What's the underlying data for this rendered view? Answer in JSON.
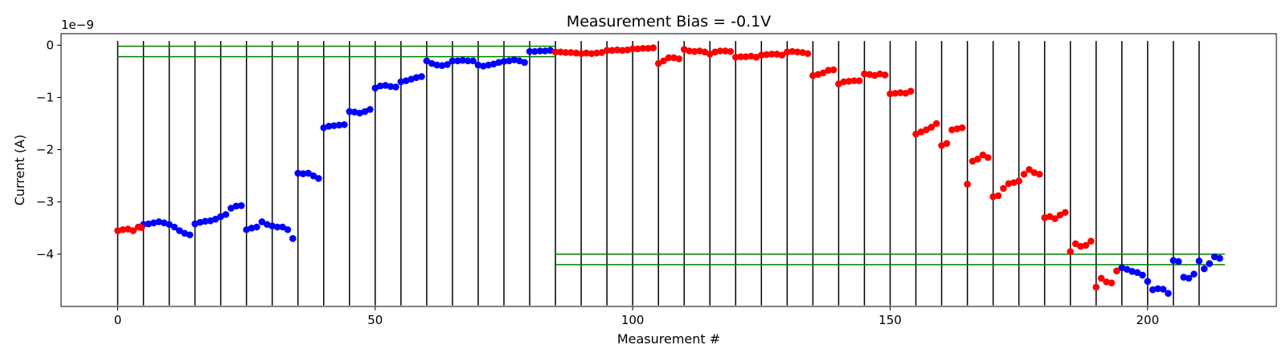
{
  "chart_data": {
    "type": "scatter",
    "title": "Measurement Bias = -0.1V",
    "xlabel": "Measurement #",
    "ylabel": "Current (A)",
    "y_exponent_label": "1e−9",
    "xlim": [
      -11,
      225
    ],
    "ylim": [
      -5.0,
      0.22
    ],
    "x_ticks": [
      0,
      50,
      100,
      150,
      200
    ],
    "x_tick_labels": [
      "0",
      "50",
      "100",
      "150",
      "200"
    ],
    "y_ticks": [
      0,
      -1,
      -2,
      -3,
      -4
    ],
    "y_tick_labels": [
      "0",
      "−1",
      "−2",
      "−3",
      "−4"
    ],
    "vertical_lines_x": [
      0,
      5,
      10,
      15,
      20,
      25,
      30,
      35,
      40,
      45,
      50,
      55,
      60,
      65,
      70,
      75,
      80,
      85,
      90,
      95,
      100,
      105,
      110,
      115,
      120,
      125,
      130,
      135,
      140,
      145,
      150,
      155,
      160,
      165,
      170,
      175,
      180,
      185,
      190,
      195,
      200,
      205,
      210
    ],
    "vertical_line_color": "#000000",
    "reference_lines": [
      {
        "y": -0.02,
        "x_start": 0,
        "x_end": 85,
        "color": "#008000"
      },
      {
        "y": -0.22,
        "x_start": 0,
        "x_end": 85,
        "color": "#008000"
      },
      {
        "y": -4.0,
        "x_start": 85,
        "x_end": 215,
        "color": "#008000"
      },
      {
        "y": -4.2,
        "x_start": 85,
        "x_end": 215,
        "color": "#008000"
      }
    ],
    "series": [
      {
        "color": "#0000ff",
        "points": [
          [
            5,
            -3.43
          ],
          [
            6,
            -3.42
          ],
          [
            7,
            -3.4
          ],
          [
            8,
            -3.38
          ],
          [
            9,
            -3.4
          ],
          [
            10,
            -3.43
          ],
          [
            11,
            -3.48
          ],
          [
            12,
            -3.55
          ],
          [
            13,
            -3.6
          ],
          [
            14,
            -3.63
          ],
          [
            15,
            -3.42
          ],
          [
            16,
            -3.39
          ],
          [
            17,
            -3.37
          ],
          [
            18,
            -3.36
          ],
          [
            19,
            -3.33
          ],
          [
            20,
            -3.28
          ],
          [
            21,
            -3.24
          ],
          [
            22,
            -3.12
          ],
          [
            23,
            -3.08
          ],
          [
            24,
            -3.07
          ],
          [
            25,
            -3.53
          ],
          [
            26,
            -3.5
          ],
          [
            27,
            -3.48
          ],
          [
            28,
            -3.38
          ],
          [
            29,
            -3.43
          ],
          [
            30,
            -3.46
          ],
          [
            31,
            -3.48
          ],
          [
            32,
            -3.48
          ],
          [
            33,
            -3.53
          ],
          [
            34,
            -3.7
          ],
          [
            35,
            -2.45
          ],
          [
            36,
            -2.46
          ],
          [
            37,
            -2.45
          ],
          [
            38,
            -2.5
          ],
          [
            39,
            -2.55
          ],
          [
            40,
            -1.58
          ],
          [
            41,
            -1.55
          ],
          [
            42,
            -1.54
          ],
          [
            43,
            -1.53
          ],
          [
            44,
            -1.52
          ],
          [
            45,
            -1.27
          ],
          [
            46,
            -1.28
          ],
          [
            47,
            -1.3
          ],
          [
            48,
            -1.27
          ],
          [
            49,
            -1.23
          ],
          [
            50,
            -0.82
          ],
          [
            51,
            -0.78
          ],
          [
            52,
            -0.77
          ],
          [
            53,
            -0.79
          ],
          [
            54,
            -0.8
          ],
          [
            55,
            -0.7
          ],
          [
            56,
            -0.68
          ],
          [
            57,
            -0.65
          ],
          [
            58,
            -0.62
          ],
          [
            59,
            -0.6
          ],
          [
            60,
            -0.3
          ],
          [
            61,
            -0.35
          ],
          [
            62,
            -0.38
          ],
          [
            63,
            -0.39
          ],
          [
            64,
            -0.37
          ],
          [
            65,
            -0.3
          ],
          [
            66,
            -0.3
          ],
          [
            67,
            -0.29
          ],
          [
            68,
            -0.3
          ],
          [
            69,
            -0.3
          ],
          [
            70,
            -0.38
          ],
          [
            71,
            -0.4
          ],
          [
            72,
            -0.38
          ],
          [
            73,
            -0.36
          ],
          [
            74,
            -0.33
          ],
          [
            75,
            -0.31
          ],
          [
            76,
            -0.3
          ],
          [
            77,
            -0.28
          ],
          [
            78,
            -0.3
          ],
          [
            79,
            -0.33
          ],
          [
            80,
            -0.12
          ],
          [
            81,
            -0.12
          ],
          [
            82,
            -0.11
          ],
          [
            83,
            -0.11
          ],
          [
            84,
            -0.1
          ],
          [
            195,
            -4.26
          ],
          [
            196,
            -4.29
          ],
          [
            197,
            -4.33
          ],
          [
            198,
            -4.35
          ],
          [
            199,
            -4.4
          ],
          [
            200,
            -4.52
          ],
          [
            201,
            -4.68
          ],
          [
            202,
            -4.66
          ],
          [
            203,
            -4.67
          ],
          [
            204,
            -4.75
          ],
          [
            205,
            -4.12
          ],
          [
            206,
            -4.14
          ],
          [
            207,
            -4.44
          ],
          [
            208,
            -4.46
          ],
          [
            209,
            -4.38
          ],
          [
            210,
            -4.13
          ],
          [
            211,
            -4.28
          ],
          [
            212,
            -4.18
          ],
          [
            213,
            -4.05
          ],
          [
            214,
            -4.08
          ]
        ]
      },
      {
        "color": "#ff0000",
        "points": [
          [
            0,
            -3.55
          ],
          [
            1,
            -3.53
          ],
          [
            2,
            -3.52
          ],
          [
            3,
            -3.55
          ],
          [
            4,
            -3.48
          ],
          [
            4.6,
            -3.49
          ],
          [
            85,
            -0.13
          ],
          [
            86,
            -0.13
          ],
          [
            87,
            -0.14
          ],
          [
            88,
            -0.14
          ],
          [
            89,
            -0.15
          ],
          [
            90,
            -0.16
          ],
          [
            91,
            -0.15
          ],
          [
            92,
            -0.16
          ],
          [
            93,
            -0.15
          ],
          [
            94,
            -0.14
          ],
          [
            95,
            -0.1
          ],
          [
            96,
            -0.1
          ],
          [
            97,
            -0.09
          ],
          [
            98,
            -0.1
          ],
          [
            99,
            -0.09
          ],
          [
            100,
            -0.07
          ],
          [
            101,
            -0.07
          ],
          [
            102,
            -0.06
          ],
          [
            103,
            -0.06
          ],
          [
            104,
            -0.05
          ],
          [
            105,
            -0.35
          ],
          [
            106,
            -0.3
          ],
          [
            107,
            -0.24
          ],
          [
            108,
            -0.24
          ],
          [
            109,
            -0.26
          ],
          [
            110,
            -0.08
          ],
          [
            111,
            -0.11
          ],
          [
            112,
            -0.12
          ],
          [
            113,
            -0.11
          ],
          [
            114,
            -0.13
          ],
          [
            115,
            -0.17
          ],
          [
            116,
            -0.13
          ],
          [
            117,
            -0.11
          ],
          [
            118,
            -0.11
          ],
          [
            119,
            -0.12
          ],
          [
            120,
            -0.23
          ],
          [
            121,
            -0.22
          ],
          [
            122,
            -0.22
          ],
          [
            123,
            -0.21
          ],
          [
            124,
            -0.23
          ],
          [
            125,
            -0.19
          ],
          [
            126,
            -0.18
          ],
          [
            127,
            -0.17
          ],
          [
            128,
            -0.17
          ],
          [
            129,
            -0.19
          ],
          [
            130,
            -0.13
          ],
          [
            131,
            -0.12
          ],
          [
            132,
            -0.13
          ],
          [
            133,
            -0.14
          ],
          [
            134,
            -0.16
          ],
          [
            135,
            -0.58
          ],
          [
            136,
            -0.56
          ],
          [
            137,
            -0.53
          ],
          [
            138,
            -0.48
          ],
          [
            139,
            -0.47
          ],
          [
            140,
            -0.74
          ],
          [
            141,
            -0.7
          ],
          [
            142,
            -0.69
          ],
          [
            143,
            -0.68
          ],
          [
            144,
            -0.68
          ],
          [
            145,
            -0.55
          ],
          [
            146,
            -0.56
          ],
          [
            147,
            -0.58
          ],
          [
            148,
            -0.55
          ],
          [
            149,
            -0.57
          ],
          [
            150,
            -0.93
          ],
          [
            151,
            -0.92
          ],
          [
            152,
            -0.91
          ],
          [
            153,
            -0.92
          ],
          [
            154,
            -0.88
          ],
          [
            155,
            -1.7
          ],
          [
            156,
            -1.66
          ],
          [
            157,
            -1.62
          ],
          [
            158,
            -1.57
          ],
          [
            159,
            -1.5
          ],
          [
            160,
            -1.92
          ],
          [
            161,
            -1.88
          ],
          [
            162,
            -1.62
          ],
          [
            163,
            -1.6
          ],
          [
            164,
            -1.58
          ],
          [
            165,
            -2.66
          ],
          [
            166,
            -2.22
          ],
          [
            167,
            -2.18
          ],
          [
            168,
            -2.1
          ],
          [
            169,
            -2.15
          ],
          [
            170,
            -2.9
          ],
          [
            171,
            -2.88
          ],
          [
            172,
            -2.74
          ],
          [
            173,
            -2.65
          ],
          [
            174,
            -2.63
          ],
          [
            175,
            -2.6
          ],
          [
            176,
            -2.47
          ],
          [
            177,
            -2.38
          ],
          [
            178,
            -2.44
          ],
          [
            179,
            -2.47
          ],
          [
            180,
            -3.3
          ],
          [
            181,
            -3.28
          ],
          [
            182,
            -3.32
          ],
          [
            183,
            -3.25
          ],
          [
            184,
            -3.2
          ],
          [
            185,
            -3.95
          ],
          [
            186,
            -3.8
          ],
          [
            187,
            -3.85
          ],
          [
            188,
            -3.83
          ],
          [
            189,
            -3.75
          ],
          [
            190,
            -4.63
          ],
          [
            191,
            -4.46
          ],
          [
            192,
            -4.53
          ],
          [
            193,
            -4.55
          ],
          [
            194,
            -4.32
          ]
        ]
      }
    ]
  }
}
